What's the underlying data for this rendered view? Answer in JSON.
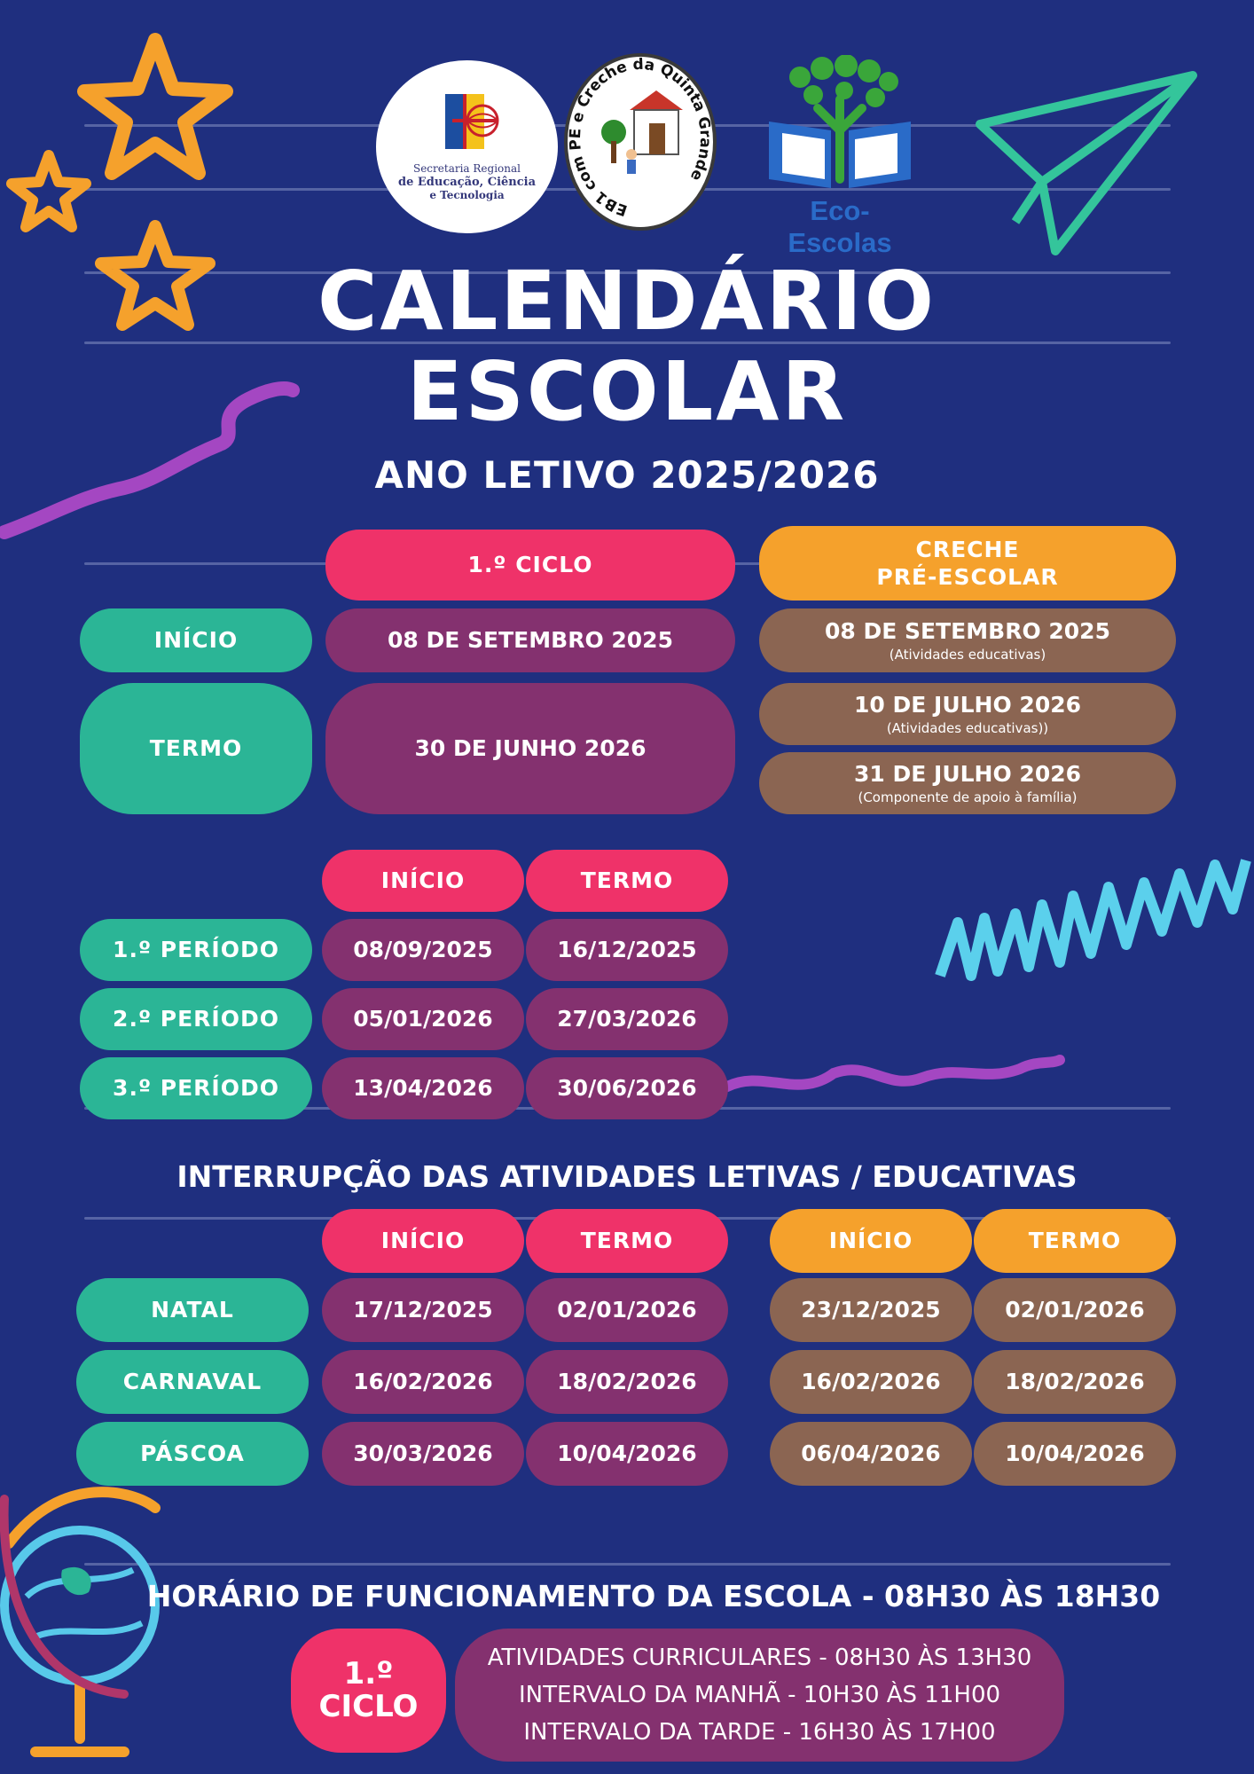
{
  "logos": {
    "secretaria": [
      "Secretaria Regional",
      "de Educação, Ciência",
      "e Tecnologia"
    ],
    "school_ring": "EB1 com PE e Creche da Quinta Grande",
    "eco": "Eco-Escolas"
  },
  "header": {
    "title_line1": "CALENDÁRIO",
    "title_line2": "ESCOLAR",
    "subtitle": "ANO LETIVO 2025/2026"
  },
  "year_table": {
    "col_ciclo": "1.º CICLO",
    "col_creche": [
      "CRECHE",
      "PRÉ-ESCOLAR"
    ],
    "inicio_label": "INÍCIO",
    "termo_label": "TERMO",
    "ciclo_inicio": "08 DE SETEMBRO 2025",
    "ciclo_termo": "30 DE JUNHO 2026",
    "creche_inicio": "08 DE SETEMBRO 2025",
    "creche_inicio_note": "(Atividades educativas)",
    "creche_termo1": "10 DE JULHO 2026",
    "creche_termo1_note": "(Atividades educativas))",
    "creche_termo2": "31 DE JULHO 2026",
    "creche_termo2_note": "(Componente de apoio à família)"
  },
  "periods": {
    "header_inicio": "INÍCIO",
    "header_termo": "TERMO",
    "rows": [
      {
        "label": "1.º PERÍODO",
        "inicio": "08/09/2025",
        "termo": "16/12/2025"
      },
      {
        "label": "2.º PERÍODO",
        "inicio": "05/01/2026",
        "termo": "27/03/2026"
      },
      {
        "label": "3.º PERÍODO",
        "inicio": "13/04/2026",
        "termo": "30/06/2026"
      }
    ]
  },
  "interruptions": {
    "title": "INTERRUPÇÃO DAS ATIVIDADES LETIVAS / EDUCATIVAS",
    "header_inicio": "INÍCIO",
    "header_termo": "TERMO",
    "rows": [
      {
        "label": "NATAL",
        "ciclo_inicio": "17/12/2025",
        "ciclo_termo": "02/01/2026",
        "creche_inicio": "23/12/2025",
        "creche_termo": "02/01/2026"
      },
      {
        "label": "CARNAVAL",
        "ciclo_inicio": "16/02/2026",
        "ciclo_termo": "18/02/2026",
        "creche_inicio": "16/02/2026",
        "creche_termo": "18/02/2026"
      },
      {
        "label": "PÁSCOA",
        "ciclo_inicio": "30/03/2026",
        "ciclo_termo": "10/04/2026",
        "creche_inicio": "06/04/2026",
        "creche_termo": "10/04/2026"
      }
    ]
  },
  "schedule": {
    "title": "HORÁRIO DE FUNCIONAMENTO DA ESCOLA - 08H30 ÀS 18H30",
    "ciclo": "1.º CICLO",
    "lines": [
      "ATIVIDADES CURRICULARES - 08H30 ÀS 13H30",
      "INTERVALO DA MANHÃ - 10H30 ÀS 11H00",
      "INTERVALO DA TARDE - 16H30 ÀS 17H00"
    ]
  },
  "colors": {
    "background": "#1f2f7f",
    "teal": "#2bb596",
    "pink": "#ef3269",
    "purple": "#84316f",
    "orange": "#f5a12c",
    "brown": "#8b6552"
  }
}
